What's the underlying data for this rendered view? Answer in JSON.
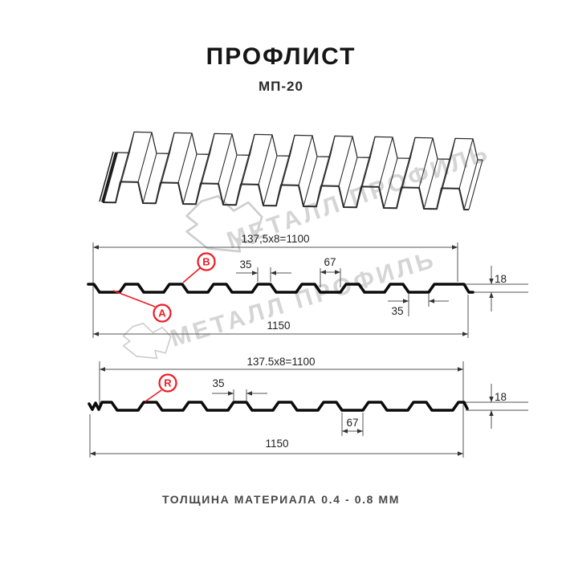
{
  "header": {
    "title": "ПРОФЛИСТ",
    "subtitle": "МП-20"
  },
  "watermark": {
    "text": "МЕТАЛЛ ПРОФИЛЬ"
  },
  "sections": [
    {
      "name": "profile-view-AB",
      "top_dimension": "137,5x8=1100",
      "rib_top_width": "35",
      "valley_width": "67",
      "bottom_gap": "35",
      "height": "18",
      "total_width": "1150",
      "markers": [
        "A",
        "B"
      ]
    },
    {
      "name": "profile-view-R",
      "top_dimension": "137.5x8=1100",
      "rib_top_width": "35",
      "valley_width": "67",
      "height": "18",
      "total_width": "1150",
      "markers": [
        "R"
      ]
    }
  ],
  "footer": {
    "note": "ТОЛЩИНА МАТЕРИАЛА 0.4 - 0.8 ММ"
  },
  "colors": {
    "marker_red": "#ee1c25",
    "line_black": "#111111",
    "dim_gray": "#555555",
    "watermark_gray": "#d5d5d5"
  }
}
